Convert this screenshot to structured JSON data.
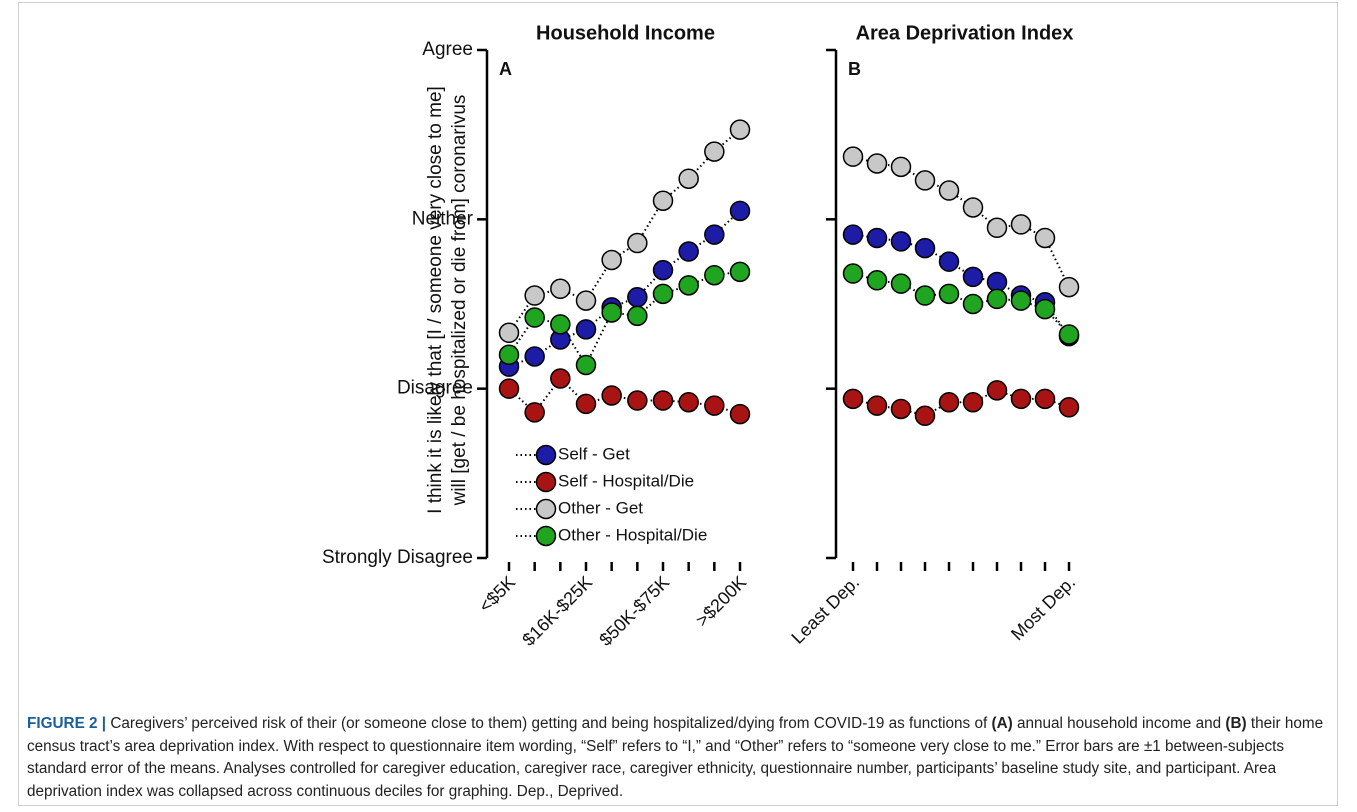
{
  "chart_data": [
    {
      "type": "line",
      "title": "Household Income",
      "panel": "A",
      "ylabel": [
        "I think it is likely that [I / someone very close to me]",
        "will [get / be hospitalized or die from] coronarivus"
      ],
      "categories": [
        "<$5K",
        null,
        null,
        "$16K-$25K",
        null,
        null,
        "$50K-$75K",
        null,
        null,
        ">$200K"
      ],
      "ylim": [
        1,
        4
      ],
      "yticks": [
        {
          "value": 1,
          "label": "Strongly Disagree"
        },
        {
          "value": 2,
          "label": "Disagree"
        },
        {
          "value": 3,
          "label": "Neither"
        },
        {
          "value": 4,
          "label": "Agree"
        }
      ],
      "series": [
        {
          "name": "Self - Get",
          "color": "#1c1ca6",
          "values": [
            2.13,
            2.19,
            2.29,
            2.35,
            2.48,
            2.54,
            2.7,
            2.81,
            2.91,
            3.05
          ]
        },
        {
          "name": "Self - Hospital/Die",
          "color": "#a81414",
          "values": [
            2.0,
            1.86,
            2.06,
            1.91,
            1.96,
            1.93,
            1.93,
            1.92,
            1.9,
            1.85
          ]
        },
        {
          "name": "Other - Get",
          "color": "#c8c8c8",
          "values": [
            2.33,
            2.55,
            2.59,
            2.52,
            2.76,
            2.86,
            3.11,
            3.24,
            3.4,
            3.53
          ]
        },
        {
          "name": "Other - Hospital/Die",
          "color": "#1fa51f",
          "values": [
            2.2,
            2.42,
            2.38,
            2.14,
            2.45,
            2.43,
            2.56,
            2.61,
            2.67,
            2.69
          ]
        }
      ]
    },
    {
      "type": "line",
      "title": "Area Deprivation Index",
      "panel": "B",
      "categories": [
        "Least Dep.",
        null,
        null,
        null,
        null,
        null,
        null,
        null,
        null,
        "Most Dep."
      ],
      "ylim": [
        1,
        4
      ],
      "yticks": [
        1,
        2,
        3,
        4
      ],
      "series": [
        {
          "color": "#1c1ca6",
          "values": [
            2.91,
            2.89,
            2.87,
            2.83,
            2.75,
            2.66,
            2.63,
            2.55,
            2.51,
            2.31
          ]
        },
        {
          "color": "#a81414",
          "values": [
            1.94,
            1.9,
            1.88,
            1.84,
            1.92,
            1.92,
            1.99,
            1.94,
            1.94,
            1.89
          ]
        },
        {
          "color": "#c8c8c8",
          "values": [
            3.37,
            3.33,
            3.31,
            3.23,
            3.17,
            3.07,
            2.95,
            2.97,
            2.89,
            2.6
          ]
        },
        {
          "color": "#1fa51f",
          "values": [
            2.68,
            2.64,
            2.62,
            2.55,
            2.56,
            2.5,
            2.53,
            2.52,
            2.47,
            2.32
          ]
        }
      ]
    }
  ],
  "figure": {
    "label": "FIGURE 2 |",
    "caption": [
      "Caregivers’ perceived risk of their (or someone close to them) getting and being hospitalized/dying from COVID-19 as functions of ",
      "(A)",
      " annual household income and ",
      "(B)",
      " their home census tract’s area deprivation index. With respect to questionnaire item wording, “Self” refers to “I,” and “Other” refers to “someone very close to me.” Error bars are ±1 between-subjects standard error of the means. Analyses controlled for caregiver education, caregiver race, caregiver ethnicity, questionnaire number, participants’ baseline study site, and participant. Area deprivation index was collapsed across continuous deciles for graphing. Dep., Deprived."
    ]
  }
}
